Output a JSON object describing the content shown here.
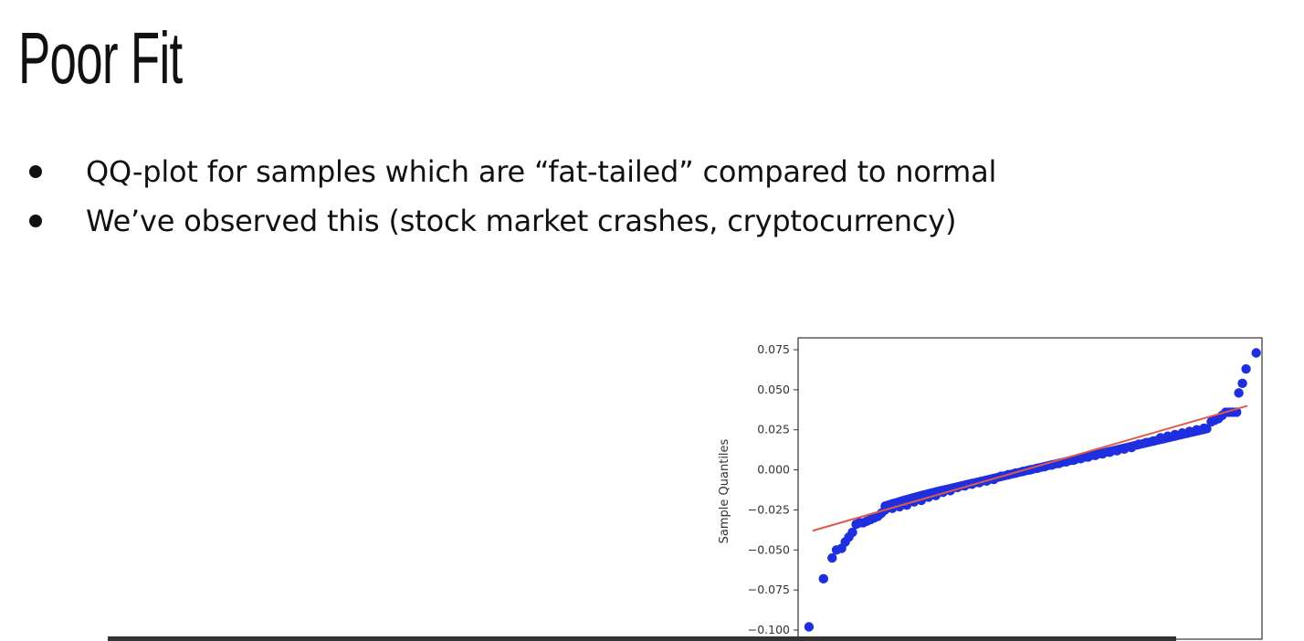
{
  "slide": {
    "title": "Poor Fit",
    "bullets": [
      "QQ-plot for samples which are “fat-tailed” compared to normal",
      "We’ve observed this (stock market crashes, cryptocurrency)"
    ]
  },
  "chart_data": {
    "type": "scatter",
    "title": "",
    "xlabel": "",
    "ylabel": "Sample Quantiles",
    "ylim": [
      -0.1,
      0.08
    ],
    "xlim": [
      -3.2,
      3.2
    ],
    "yticks": [
      0.075,
      0.05,
      0.025,
      0.0,
      -0.025,
      -0.05,
      -0.075,
      -0.1
    ],
    "ytick_labels": [
      "0.075",
      "0.050",
      "0.025",
      "0.000",
      "−0.025",
      "−0.050",
      "−0.075",
      "−0.100"
    ],
    "grid": false,
    "series": [
      {
        "points_color": "#1f2fe0",
        "points": [
          [
            -3.05,
            -0.098
          ],
          [
            -2.85,
            -0.068
          ],
          [
            -2.73,
            -0.055
          ],
          [
            -2.67,
            -0.05
          ],
          [
            -2.6,
            -0.049
          ],
          [
            -2.55,
            -0.045
          ],
          [
            -2.5,
            -0.042
          ],
          [
            -2.45,
            -0.039
          ],
          [
            -2.4,
            -0.034
          ],
          [
            -2.35,
            -0.033
          ],
          [
            -2.3,
            -0.033
          ],
          [
            -2.25,
            -0.032
          ],
          [
            -2.2,
            -0.031
          ],
          [
            -2.15,
            -0.03
          ],
          [
            -2.1,
            -0.029
          ],
          [
            -2.05,
            -0.027
          ],
          [
            -2.0,
            -0.025
          ],
          [
            -1.9,
            -0.024
          ],
          [
            -1.8,
            -0.023
          ],
          [
            -1.7,
            -0.022
          ],
          [
            -1.6,
            -0.02
          ],
          [
            -1.5,
            -0.019
          ],
          [
            -1.4,
            -0.017
          ],
          [
            -1.3,
            -0.016
          ],
          [
            -1.2,
            -0.014
          ],
          [
            -1.1,
            -0.013
          ],
          [
            -1.0,
            -0.011
          ],
          [
            -0.9,
            -0.01
          ],
          [
            -0.8,
            -0.009
          ],
          [
            -0.7,
            -0.008
          ],
          [
            -0.6,
            -0.007
          ],
          [
            -0.5,
            -0.006
          ],
          [
            -0.4,
            -0.004
          ],
          [
            -0.3,
            -0.003
          ],
          [
            -0.2,
            -0.002
          ],
          [
            -0.1,
            -0.001
          ],
          [
            0.0,
            0.0
          ],
          [
            0.1,
            0.001
          ],
          [
            0.2,
            0.002
          ],
          [
            0.3,
            0.003
          ],
          [
            0.4,
            0.004
          ],
          [
            0.5,
            0.005
          ],
          [
            0.6,
            0.006
          ],
          [
            0.7,
            0.007
          ],
          [
            0.8,
            0.008
          ],
          [
            0.9,
            0.009
          ],
          [
            1.0,
            0.01
          ],
          [
            1.1,
            0.011
          ],
          [
            1.2,
            0.012
          ],
          [
            1.3,
            0.013
          ],
          [
            1.4,
            0.014
          ],
          [
            1.5,
            0.016
          ],
          [
            1.6,
            0.017
          ],
          [
            1.7,
            0.018
          ],
          [
            1.8,
            0.02
          ],
          [
            1.9,
            0.021
          ],
          [
            2.0,
            0.022
          ],
          [
            2.1,
            0.023
          ],
          [
            2.2,
            0.024
          ],
          [
            2.3,
            0.025
          ],
          [
            2.4,
            0.026
          ],
          [
            2.5,
            0.03
          ],
          [
            2.55,
            0.031
          ],
          [
            2.6,
            0.032
          ],
          [
            2.65,
            0.034
          ],
          [
            2.7,
            0.036
          ],
          [
            2.75,
            0.036
          ],
          [
            2.8,
            0.036
          ],
          [
            2.85,
            0.036
          ],
          [
            2.88,
            0.048
          ],
          [
            2.93,
            0.054
          ],
          [
            2.98,
            0.063
          ],
          [
            3.12,
            0.073
          ]
        ]
      },
      {
        "line_color": "#e05a4a",
        "line": [
          [
            -3.0,
            -0.038
          ],
          [
            3.0,
            0.04
          ]
        ]
      }
    ]
  }
}
